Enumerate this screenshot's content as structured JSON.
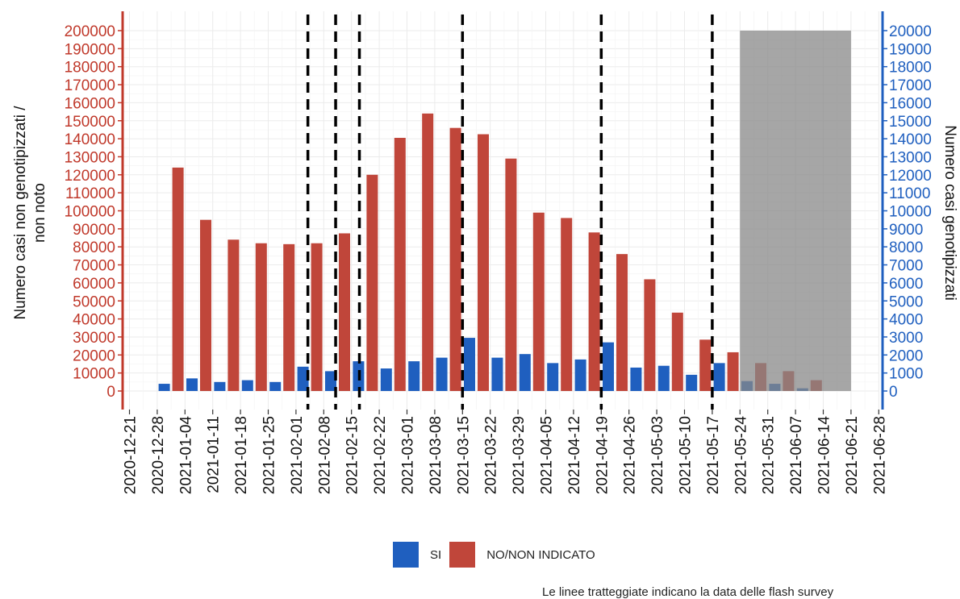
{
  "chart_data": {
    "type": "bar",
    "x": [
      "2020-12-21",
      "2020-12-28",
      "2021-01-04",
      "2021-01-11",
      "2021-01-18",
      "2021-01-25",
      "2021-02-01",
      "2021-02-08",
      "2021-02-15",
      "2021-02-22",
      "2021-03-01",
      "2021-03-08",
      "2021-03-15",
      "2021-03-22",
      "2021-03-29",
      "2021-04-05",
      "2021-04-12",
      "2021-04-19",
      "2021-04-26",
      "2021-05-03",
      "2021-05-10",
      "2021-05-17",
      "2021-05-24",
      "2021-05-31",
      "2021-06-07",
      "2021-06-14",
      "2021-06-21",
      "2021-06-28"
    ],
    "ylabel_left": "Numero casi non genotipizzati / non noto",
    "ylabel_right": "Numero casi genotipizzati",
    "ylim_left": [
      0,
      200000
    ],
    "ylim_right": [
      0,
      20000
    ],
    "yticks_left": [
      "0",
      "10000",
      "20000",
      "30000",
      "40000",
      "50000",
      "60000",
      "70000",
      "80000",
      "90000",
      "100000",
      "110000",
      "120000",
      "130000",
      "140000",
      "150000",
      "160000",
      "170000",
      "180000",
      "190000",
      "200000"
    ],
    "yticks_right": [
      "0",
      "1000",
      "2000",
      "3000",
      "4000",
      "5000",
      "6000",
      "7000",
      "8000",
      "9000",
      "10000",
      "11000",
      "12000",
      "13000",
      "14000",
      "15000",
      "16000",
      "17000",
      "18000",
      "19000",
      "20000"
    ],
    "series": [
      {
        "name": "SI",
        "axis": "right",
        "color": "#1f5fbf",
        "values": [
          null,
          400,
          700,
          500,
          600,
          500,
          1350,
          1100,
          1650,
          1250,
          1650,
          1850,
          2950,
          1850,
          2050,
          1550,
          1750,
          2700,
          1300,
          1400,
          900,
          1550,
          550,
          400,
          150,
          null,
          null,
          null
        ]
      },
      {
        "name": "NO/NON INDICATO",
        "axis": "left",
        "color": "#c0463a",
        "values": [
          null,
          124000,
          95000,
          84000,
          82000,
          81500,
          82000,
          87500,
          120000,
          140500,
          154000,
          146000,
          142500,
          129000,
          99000,
          96000,
          88000,
          76000,
          62000,
          43500,
          28500,
          21500,
          15500,
          11000,
          6000,
          null,
          null,
          null
        ]
      }
    ],
    "flash_survey_dates": [
      "2021-02-04",
      "2021-02-11",
      "2021-02-17",
      "2021-03-15",
      "2021-04-19",
      "2021-05-17"
    ],
    "shaded_period": [
      "2021-05-24",
      "2021-06-21"
    ],
    "grid": true,
    "legend_position": "bottom",
    "caption": "Le linee tratteggiate indicano la data delle flash survey"
  }
}
